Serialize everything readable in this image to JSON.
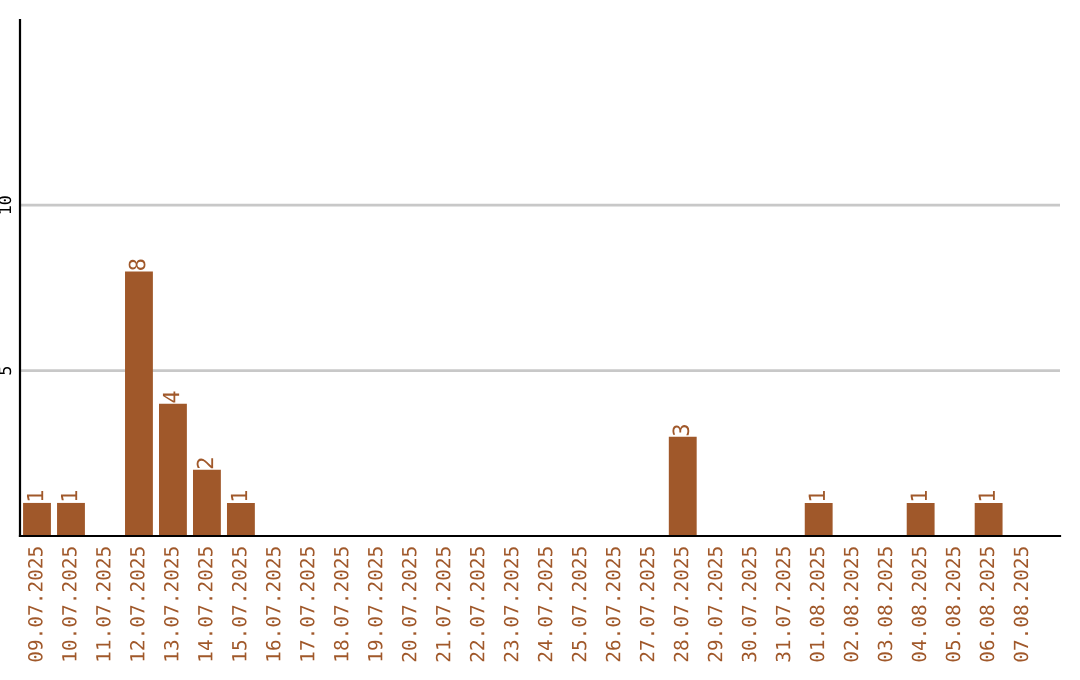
{
  "chart_data": {
    "type": "bar",
    "categories": [
      "09.07.2025",
      "10.07.2025",
      "11.07.2025",
      "12.07.2025",
      "13.07.2025",
      "14.07.2025",
      "15.07.2025",
      "16.07.2025",
      "17.07.2025",
      "18.07.2025",
      "19.07.2025",
      "20.07.2025",
      "21.07.2025",
      "22.07.2025",
      "23.07.2025",
      "24.07.2025",
      "25.07.2025",
      "26.07.2025",
      "27.07.2025",
      "28.07.2025",
      "29.07.2025",
      "30.07.2025",
      "31.07.2025",
      "01.08.2025",
      "02.08.2025",
      "03.08.2025",
      "04.08.2025",
      "05.08.2025",
      "06.08.2025",
      "07.08.2025"
    ],
    "values": [
      1,
      1,
      0,
      8,
      4,
      2,
      1,
      0,
      0,
      0,
      0,
      0,
      0,
      0,
      0,
      0,
      0,
      0,
      0,
      3,
      0,
      0,
      0,
      1,
      0,
      0,
      1,
      0,
      1,
      0
    ],
    "value_labels": [
      "1",
      "1",
      null,
      "8",
      "4",
      "2",
      "1",
      null,
      null,
      null,
      null,
      null,
      null,
      null,
      null,
      null,
      null,
      null,
      null,
      "3",
      null,
      null,
      null,
      "1",
      null,
      null,
      "1",
      null,
      "1",
      null
    ],
    "color": "#a0582a",
    "ylim": [
      0,
      15.6
    ],
    "yticks": [
      5,
      10
    ],
    "grid": "y"
  }
}
